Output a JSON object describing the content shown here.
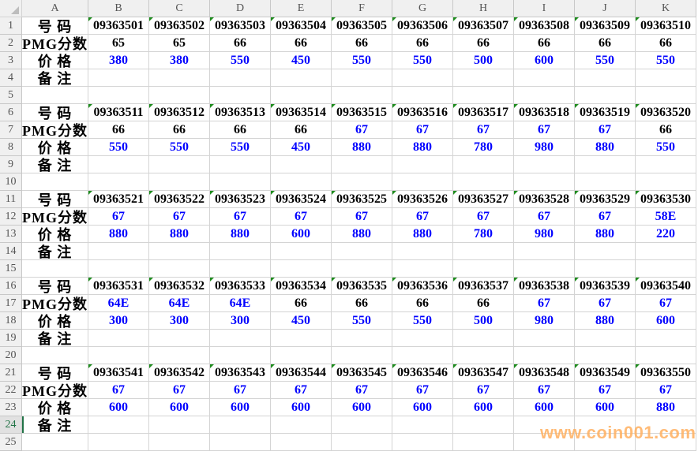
{
  "columns": [
    "A",
    "B",
    "C",
    "D",
    "E",
    "F",
    "G",
    "H",
    "I",
    "J",
    "K"
  ],
  "row_numbers": [
    "1",
    "2",
    "3",
    "4",
    "5",
    "6",
    "7",
    "8",
    "9",
    "10",
    "11",
    "12",
    "13",
    "14",
    "15",
    "16",
    "17",
    "18",
    "19",
    "20",
    "21",
    "22",
    "23",
    "24",
    "25"
  ],
  "active_row": "24",
  "labels": {
    "number": "号  码",
    "score": "PMG分数",
    "price": "价  格",
    "note": "备  注"
  },
  "colors": {
    "score_highlight": "#0000ff",
    "price": "#0000ff",
    "default": "#000000",
    "watermark": "#ffb060"
  },
  "blocks": [
    {
      "numbers": [
        "09363501",
        "09363502",
        "09363503",
        "09363504",
        "09363505",
        "09363506",
        "09363507",
        "09363508",
        "09363509",
        "09363510"
      ],
      "scores": [
        "65",
        "65",
        "66",
        "66",
        "66",
        "66",
        "66",
        "66",
        "66",
        "66"
      ],
      "score_blue": [
        false,
        false,
        false,
        false,
        false,
        false,
        false,
        false,
        false,
        false
      ],
      "prices": [
        "380",
        "380",
        "550",
        "450",
        "550",
        "550",
        "500",
        "600",
        "550",
        "550"
      ]
    },
    {
      "numbers": [
        "09363511",
        "09363512",
        "09363513",
        "09363514",
        "09363515",
        "09363516",
        "09363517",
        "09363518",
        "09363519",
        "09363520"
      ],
      "scores": [
        "66",
        "66",
        "66",
        "66",
        "67",
        "67",
        "67",
        "67",
        "67",
        "66"
      ],
      "score_blue": [
        false,
        false,
        false,
        false,
        true,
        true,
        true,
        true,
        true,
        false
      ],
      "prices": [
        "550",
        "550",
        "550",
        "450",
        "880",
        "880",
        "780",
        "980",
        "880",
        "550"
      ]
    },
    {
      "numbers": [
        "09363521",
        "09363522",
        "09363523",
        "09363524",
        "09363525",
        "09363526",
        "09363527",
        "09363528",
        "09363529",
        "09363530"
      ],
      "scores": [
        "67",
        "67",
        "67",
        "67",
        "67",
        "67",
        "67",
        "67",
        "67",
        "58E"
      ],
      "score_blue": [
        true,
        true,
        true,
        true,
        true,
        true,
        true,
        true,
        true,
        true
      ],
      "prices": [
        "880",
        "880",
        "880",
        "600",
        "880",
        "880",
        "780",
        "980",
        "880",
        "220"
      ]
    },
    {
      "numbers": [
        "09363531",
        "09363532",
        "09363533",
        "09363534",
        "09363535",
        "09363536",
        "09363537",
        "09363538",
        "09363539",
        "09363540"
      ],
      "scores": [
        "64E",
        "64E",
        "64E",
        "66",
        "66",
        "66",
        "66",
        "67",
        "67",
        "67"
      ],
      "score_blue": [
        true,
        true,
        true,
        false,
        false,
        false,
        false,
        true,
        true,
        true
      ],
      "prices": [
        "300",
        "300",
        "300",
        "450",
        "550",
        "550",
        "500",
        "980",
        "880",
        "600"
      ]
    },
    {
      "numbers": [
        "09363541",
        "09363542",
        "09363543",
        "09363544",
        "09363545",
        "09363546",
        "09363547",
        "09363548",
        "09363549",
        "09363550"
      ],
      "scores": [
        "67",
        "67",
        "67",
        "67",
        "67",
        "67",
        "67",
        "67",
        "67",
        "67"
      ],
      "score_blue": [
        true,
        true,
        true,
        true,
        true,
        true,
        true,
        true,
        true,
        true
      ],
      "prices": [
        "600",
        "600",
        "600",
        "600",
        "600",
        "600",
        "600",
        "600",
        "600",
        "880"
      ]
    }
  ],
  "watermark": "www.coin001.com"
}
